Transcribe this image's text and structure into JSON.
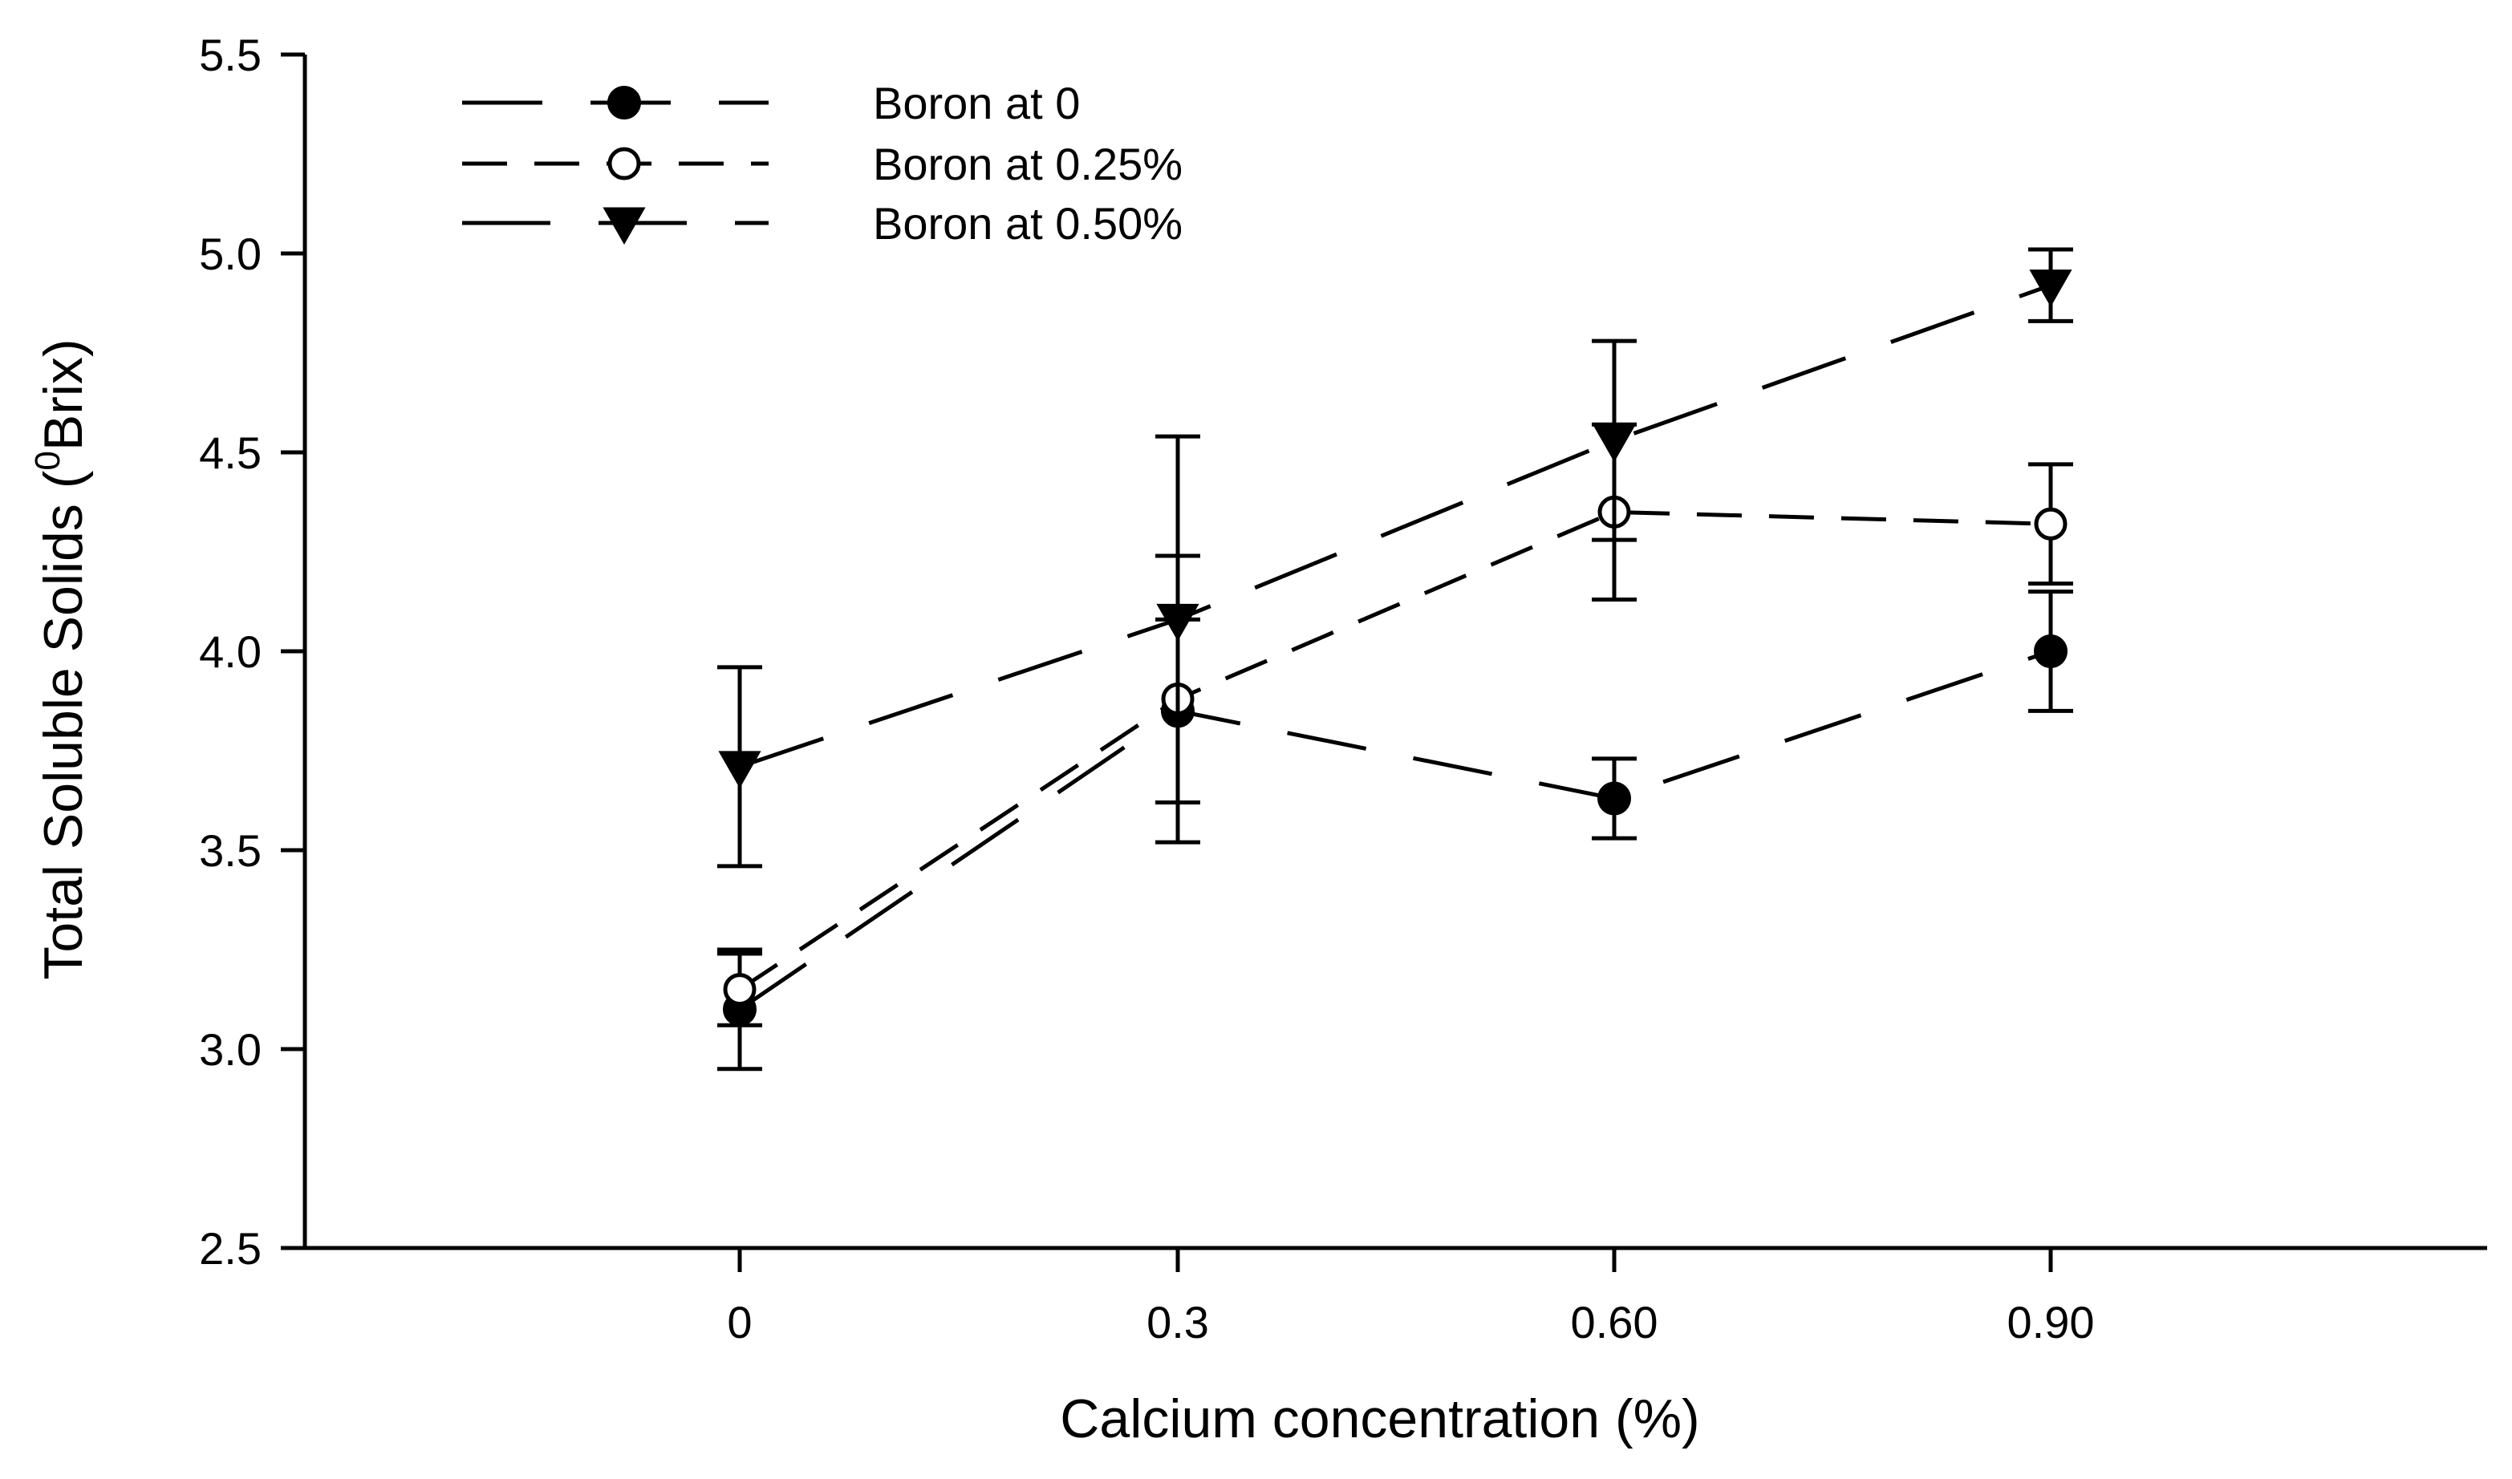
{
  "chart_data": {
    "type": "line",
    "title": "",
    "xlabel": "Calcium concentration (%)",
    "ylabel": "Total Soluble Solids (",
    "ylabel_superscript": "0",
    "ylabel_suffix": "Brix)",
    "categories": [
      "0",
      "0.3",
      "0.60",
      "0.90"
    ],
    "yticks": [
      "2.5",
      "3.0",
      "3.5",
      "4.0",
      "4.5",
      "5.0",
      "5.5"
    ],
    "ylim": [
      2.5,
      5.5
    ],
    "grid": false,
    "legend_position": "top-left",
    "series": [
      {
        "name": "Boron at 0",
        "marker": "filled-circle",
        "values": [
          3.1,
          3.85,
          3.63,
          4.0
        ],
        "errors": [
          0.15,
          0.23,
          0.1,
          0.15
        ]
      },
      {
        "name": "Boron at 0.25%",
        "marker": "open-circle",
        "values": [
          3.15,
          3.88,
          4.35,
          4.32
        ],
        "errors": [
          0.09,
          0.36,
          0.22,
          0.15
        ]
      },
      {
        "name": "Boron at 0.50%",
        "marker": "filled-triangle-down",
        "values": [
          3.71,
          4.08,
          4.53,
          4.92
        ],
        "errors": [
          0.25,
          0.46,
          0.25,
          0.09
        ]
      }
    ]
  }
}
